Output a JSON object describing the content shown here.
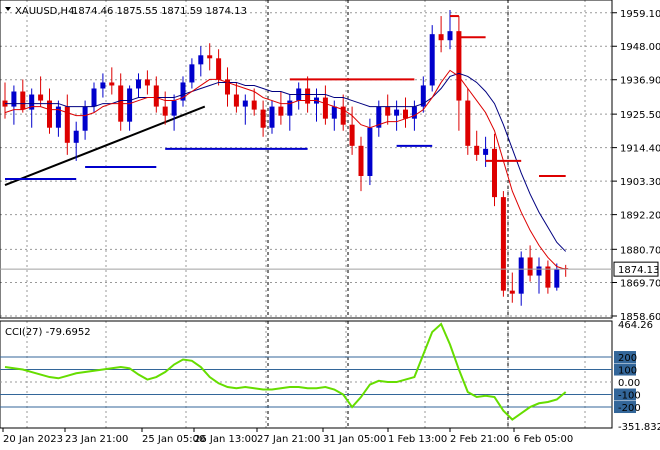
{
  "header": {
    "symbol": "XAUUSD,H4",
    "ohlc": "1874.46 1875.55 1871.59 1874.13"
  },
  "cci_panel": {
    "label": "CCI(27) -79.6952",
    "ticks": [
      "464.26",
      "200",
      "100",
      "0.00",
      "-100",
      "-200",
      "-351.8323"
    ],
    "tick_values": [
      464.26,
      200,
      100,
      0,
      -100,
      -200,
      -351.8323
    ],
    "range": [
      -351.8323,
      464.26
    ]
  },
  "price_axis": {
    "ticks": [
      "1959.10",
      "1948.00",
      "1936.90",
      "1925.50",
      "1914.40",
      "1903.30",
      "1892.20",
      "1880.70",
      "1869.70",
      "1858.60"
    ],
    "tick_values": [
      1959.1,
      1948.0,
      1936.9,
      1925.5,
      1914.4,
      1903.3,
      1892.2,
      1880.7,
      1869.7,
      1858.6
    ],
    "current_label": "1874.13",
    "current_value": 1874.13
  },
  "time_axis": {
    "labels": [
      "20 Jan 2023",
      "23 Jan 21:00",
      "25 Jan 05:00",
      "26 Jan 13:00",
      "27 Jan 21:00",
      "31 Jan 05:00",
      "1 Feb 13:00",
      "2 Feb 21:00",
      "6 Feb 05:00"
    ]
  },
  "colors": {
    "bull": "#0000cc",
    "bear": "#dd0000",
    "ma_fast": "#dd0000",
    "ma_slow": "#000080",
    "stop_red": "#dd0000",
    "stop_blue": "#0000cc",
    "trend": "#000000",
    "cci": "#66dd00",
    "level": "#336699"
  },
  "chart_data": {
    "type": "candlestick",
    "price_range": [
      1858.6,
      1962.0
    ],
    "candles": [
      [
        1930,
        1936,
        1924,
        1928
      ],
      [
        1928,
        1935,
        1922,
        1933
      ],
      [
        1933,
        1937,
        1926,
        1927
      ],
      [
        1927,
        1934,
        1921,
        1932
      ],
      [
        1932,
        1938,
        1928,
        1930
      ],
      [
        1930,
        1934,
        1919,
        1921
      ],
      [
        1921,
        1930,
        1918,
        1928
      ],
      [
        1928,
        1932,
        1912,
        1916
      ],
      [
        1916,
        1923,
        1910,
        1920
      ],
      [
        1920,
        1930,
        1917,
        1928
      ],
      [
        1928,
        1936,
        1926,
        1934
      ],
      [
        1934,
        1939,
        1931,
        1936
      ],
      [
        1936,
        1941,
        1932,
        1935
      ],
      [
        1935,
        1939,
        1920,
        1923
      ],
      [
        1923,
        1935,
        1920,
        1934
      ],
      [
        1934,
        1939,
        1931,
        1937
      ],
      [
        1937,
        1940,
        1932,
        1935
      ],
      [
        1935,
        1938,
        1926,
        1928
      ],
      [
        1928,
        1933,
        1922,
        1925
      ],
      [
        1925,
        1932,
        1920,
        1930
      ],
      [
        1930,
        1938,
        1928,
        1936
      ],
      [
        1936,
        1944,
        1934,
        1942
      ],
      [
        1942,
        1948,
        1938,
        1945
      ],
      [
        1945,
        1949,
        1940,
        1944
      ],
      [
        1944,
        1947,
        1935,
        1937
      ],
      [
        1937,
        1941,
        1928,
        1932
      ],
      [
        1932,
        1936,
        1926,
        1928
      ],
      [
        1928,
        1932,
        1922,
        1930
      ],
      [
        1930,
        1934,
        1925,
        1927
      ],
      [
        1927,
        1930,
        1918,
        1921
      ],
      [
        1921,
        1930,
        1919,
        1928
      ],
      [
        1928,
        1933,
        1922,
        1925
      ],
      [
        1925,
        1932,
        1920,
        1930
      ],
      [
        1930,
        1936,
        1927,
        1934
      ],
      [
        1934,
        1938,
        1926,
        1929
      ],
      [
        1929,
        1934,
        1923,
        1931
      ],
      [
        1931,
        1935,
        1922,
        1924
      ],
      [
        1924,
        1930,
        1920,
        1928
      ],
      [
        1928,
        1932,
        1920,
        1922
      ],
      [
        1922,
        1928,
        1912,
        1915
      ],
      [
        1915,
        1918,
        1900,
        1905
      ],
      [
        1905,
        1924,
        1902,
        1921
      ],
      [
        1921,
        1930,
        1918,
        1928
      ],
      [
        1928,
        1932,
        1922,
        1925
      ],
      [
        1925,
        1930,
        1920,
        1927
      ],
      [
        1927,
        1931,
        1921,
        1924
      ],
      [
        1924,
        1930,
        1920,
        1928
      ],
      [
        1928,
        1938,
        1926,
        1935
      ],
      [
        1935,
        1955,
        1933,
        1952
      ],
      [
        1952,
        1958,
        1946,
        1950
      ],
      [
        1950,
        1960,
        1947,
        1953
      ],
      [
        1953,
        1958,
        1920,
        1930
      ],
      [
        1930,
        1934,
        1912,
        1915
      ],
      [
        1915,
        1920,
        1910,
        1912
      ],
      [
        1912,
        1918,
        1908,
        1914
      ],
      [
        1914,
        1919,
        1895,
        1898
      ],
      [
        1898,
        1900,
        1865,
        1867
      ],
      [
        1867,
        1873,
        1863,
        1866
      ],
      [
        1866,
        1880,
        1862,
        1878
      ],
      [
        1878,
        1882,
        1870,
        1872
      ],
      [
        1872,
        1878,
        1866,
        1875
      ],
      [
        1875,
        1877,
        1866,
        1868
      ],
      [
        1868,
        1876,
        1867,
        1874
      ],
      [
        1874.46,
        1875.55,
        1871.59,
        1874.13
      ]
    ],
    "ma_fast": [
      1926,
      1927,
      1927,
      1928,
      1928,
      1927,
      1927,
      1926,
      1925,
      1925,
      1926,
      1928,
      1929,
      1929,
      1929,
      1930,
      1931,
      1931,
      1930,
      1930,
      1931,
      1933,
      1935,
      1937,
      1937,
      1936,
      1935,
      1934,
      1933,
      1931,
      1930,
      1929,
      1929,
      1930,
      1930,
      1930,
      1929,
      1928,
      1927,
      1925,
      1922,
      1921,
      1922,
      1923,
      1923,
      1924,
      1925,
      1927,
      1931,
      1936,
      1940,
      1938,
      1934,
      1930,
      1926,
      1920,
      1910,
      1900,
      1893,
      1887,
      1882,
      1878,
      1875,
      1874
    ],
    "ma_slow": [
      1929,
      1929,
      1929,
      1929,
      1929,
      1929,
      1929,
      1928,
      1928,
      1928,
      1928,
      1929,
      1929,
      1930,
      1930,
      1931,
      1931,
      1931,
      1931,
      1931,
      1932,
      1933,
      1934,
      1935,
      1936,
      1936,
      1936,
      1935,
      1935,
      1934,
      1933,
      1933,
      1932,
      1932,
      1932,
      1932,
      1932,
      1931,
      1931,
      1930,
      1929,
      1928,
      1928,
      1928,
      1928,
      1928,
      1928,
      1929,
      1931,
      1934,
      1938,
      1939,
      1938,
      1936,
      1933,
      1929,
      1922,
      1914,
      1906,
      1899,
      1893,
      1888,
      1883,
      1880
    ],
    "stops_red": [
      {
        "from": 32,
        "to": 46,
        "value": 1937
      },
      {
        "from": 50,
        "to": 51,
        "value": 1958
      },
      {
        "from": 51,
        "to": 54,
        "value": 1951
      },
      {
        "from": 54,
        "to": 58,
        "value": 1910
      },
      {
        "from": 60,
        "to": 63,
        "value": 1905
      }
    ],
    "stops_blue": [
      {
        "from": 0,
        "to": 8,
        "value": 1904
      },
      {
        "from": 9,
        "to": 17,
        "value": 1908
      },
      {
        "from": 18,
        "to": 34,
        "value": 1914
      },
      {
        "from": 44,
        "to": 48,
        "value": 1915
      }
    ],
    "trendline": {
      "from": 0,
      "to": 22,
      "start": 1902,
      "end": 1928
    },
    "cci": [
      120,
      110,
      100,
      80,
      60,
      40,
      30,
      50,
      70,
      80,
      90,
      100,
      110,
      120,
      110,
      60,
      20,
      40,
      80,
      140,
      180,
      170,
      120,
      40,
      -10,
      -40,
      -50,
      -40,
      -50,
      -60,
      -60,
      -50,
      -40,
      -40,
      -50,
      -50,
      -40,
      -60,
      -100,
      -200,
      -120,
      -20,
      10,
      0,
      0,
      20,
      40,
      220,
      400,
      464,
      300,
      100,
      -80,
      -120,
      -110,
      -120,
      -230,
      -300,
      -250,
      -200,
      -170,
      -160,
      -140,
      -80
    ]
  }
}
